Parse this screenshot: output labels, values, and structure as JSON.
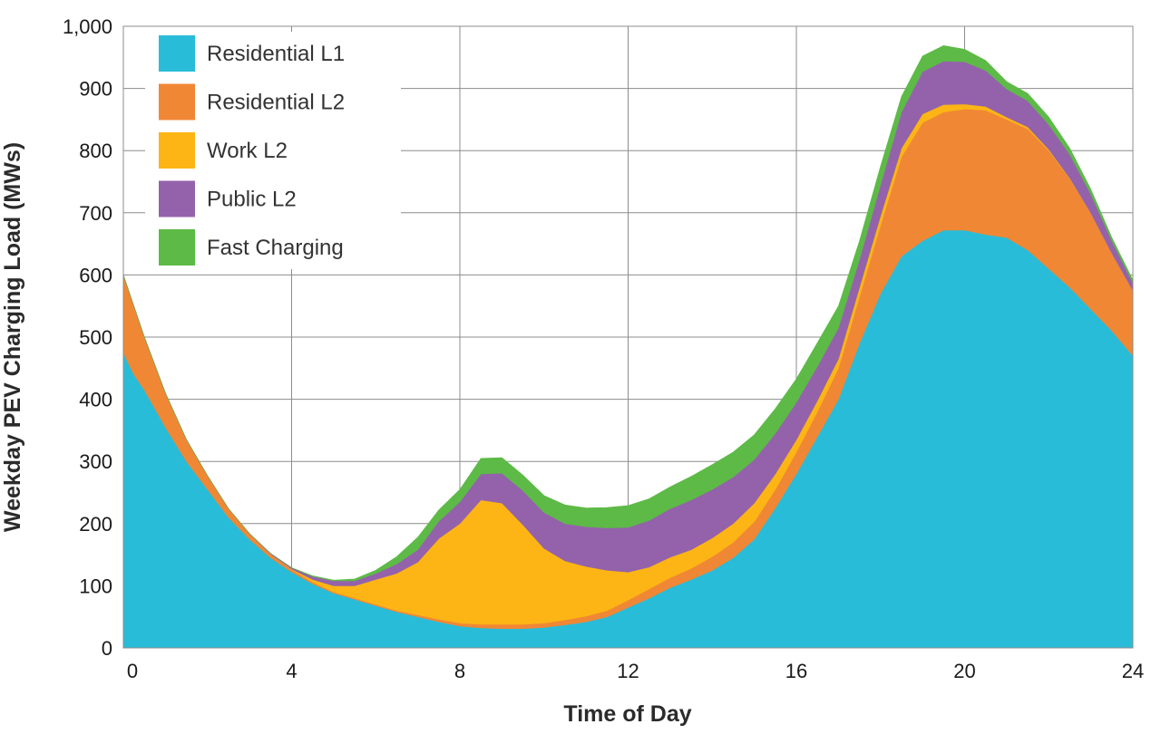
{
  "chart_data": {
    "type": "area",
    "stacked": true,
    "title": "",
    "xlabel": "Time of Day",
    "ylabel": "Weekday PEV Charging Load (MWs)",
    "xlim": [
      0,
      24
    ],
    "ylim": [
      0,
      1000
    ],
    "x_ticks": [
      0,
      4,
      8,
      12,
      16,
      20,
      24
    ],
    "x_tick_labels": [
      "0",
      "4",
      "8",
      "12",
      "16",
      "20",
      "24"
    ],
    "y_ticks": [
      0,
      100,
      200,
      300,
      400,
      500,
      600,
      700,
      800,
      900,
      1000
    ],
    "y_tick_labels": [
      "0",
      "100",
      "200",
      "300",
      "400",
      "500",
      "600",
      "700",
      "800",
      "900",
      "1,000"
    ],
    "grid": true,
    "legend_position": "top-left",
    "x": [
      0,
      0.25,
      0.5,
      1,
      1.5,
      2,
      2.5,
      3,
      3.5,
      4,
      4.5,
      5,
      5.5,
      6,
      6.5,
      7,
      7.5,
      8,
      8.5,
      9,
      9.5,
      10,
      10.5,
      11,
      11.5,
      12,
      12.5,
      13,
      13.5,
      14,
      14.5,
      15,
      15.5,
      16,
      16.5,
      17,
      17.5,
      18,
      18.5,
      19,
      19.5,
      20,
      20.5,
      21,
      21.5,
      22,
      22.5,
      23,
      23.5,
      24
    ],
    "series": [
      {
        "name": "Residential L1",
        "color": "#29BCD8",
        "values": [
          475,
          440,
          415,
          355,
          300,
          255,
          210,
          175,
          145,
          122,
          103,
          88,
          78,
          68,
          58,
          50,
          42,
          35,
          32,
          31,
          31,
          33,
          37,
          42,
          50,
          65,
          80,
          97,
          110,
          125,
          145,
          175,
          225,
          280,
          340,
          400,
          490,
          570,
          630,
          655,
          672,
          672,
          665,
          660,
          640,
          610,
          580,
          545,
          510,
          470
        ]
      },
      {
        "name": "Residential L2",
        "color": "#F08735",
        "values": [
          125,
          110,
          85,
          55,
          35,
          22,
          14,
          9,
          6,
          4,
          3,
          2,
          2,
          2,
          2,
          3,
          4,
          5,
          6,
          7,
          7,
          7,
          8,
          9,
          10,
          12,
          15,
          16,
          18,
          22,
          25,
          28,
          30,
          35,
          40,
          50,
          75,
          110,
          160,
          190,
          190,
          195,
          200,
          190,
          195,
          190,
          175,
          155,
          125,
          105
        ]
      },
      {
        "name": "Work L2",
        "color": "#FCB514",
        "values": [
          0,
          0,
          0,
          0,
          0,
          0,
          0,
          0,
          0,
          1,
          4,
          10,
          20,
          40,
          60,
          85,
          130,
          160,
          200,
          195,
          160,
          120,
          95,
          80,
          65,
          45,
          35,
          33,
          30,
          30,
          30,
          30,
          25,
          20,
          18,
          15,
          15,
          15,
          14,
          14,
          12,
          8,
          6,
          4,
          3,
          2,
          1,
          0,
          0,
          0
        ]
      },
      {
        "name": "Public L2",
        "color": "#9462AB",
        "values": [
          0,
          0,
          0,
          0,
          0,
          0,
          0,
          0,
          1,
          2,
          5,
          8,
          8,
          10,
          15,
          20,
          28,
          35,
          42,
          48,
          55,
          58,
          60,
          64,
          68,
          72,
          75,
          78,
          80,
          78,
          75,
          70,
          65,
          60,
          55,
          50,
          45,
          50,
          58,
          68,
          70,
          68,
          58,
          45,
          42,
          40,
          38,
          30,
          20,
          12
        ]
      },
      {
        "name": "Fast Charging",
        "color": "#5DBA47",
        "values": [
          0,
          0,
          0,
          0,
          0,
          0,
          0,
          0,
          0,
          0,
          1,
          1,
          3,
          5,
          12,
          20,
          18,
          20,
          25,
          25,
          25,
          27,
          30,
          30,
          33,
          35,
          35,
          35,
          38,
          40,
          40,
          40,
          40,
          38,
          38,
          35,
          30,
          30,
          25,
          25,
          25,
          20,
          16,
          12,
          12,
          12,
          10,
          8,
          5,
          5
        ]
      }
    ]
  }
}
